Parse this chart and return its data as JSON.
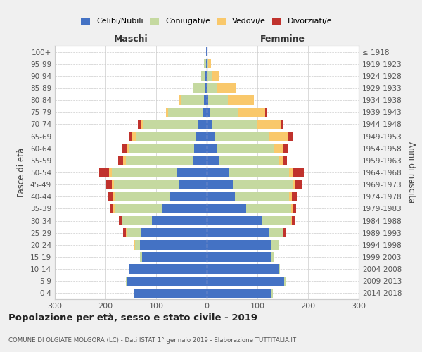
{
  "age_groups": [
    "0-4",
    "5-9",
    "10-14",
    "15-19",
    "20-24",
    "25-29",
    "30-34",
    "35-39",
    "40-44",
    "45-49",
    "50-54",
    "55-59",
    "60-64",
    "65-69",
    "70-74",
    "75-79",
    "80-84",
    "85-89",
    "90-94",
    "95-99",
    "100+"
  ],
  "birth_years": [
    "2014-2018",
    "2009-2013",
    "2004-2008",
    "1999-2003",
    "1994-1998",
    "1989-1993",
    "1984-1988",
    "1979-1983",
    "1974-1978",
    "1969-1973",
    "1964-1968",
    "1959-1963",
    "1954-1958",
    "1949-1953",
    "1944-1948",
    "1939-1943",
    "1934-1938",
    "1929-1933",
    "1924-1928",
    "1919-1923",
    "≤ 1918"
  ],
  "males_celibi": [
    143,
    158,
    153,
    128,
    132,
    130,
    108,
    88,
    72,
    55,
    60,
    28,
    25,
    22,
    18,
    8,
    5,
    4,
    3,
    2,
    1
  ],
  "males_coniugati": [
    2,
    2,
    0,
    4,
    10,
    28,
    58,
    92,
    108,
    128,
    128,
    132,
    128,
    118,
    108,
    68,
    45,
    22,
    8,
    4,
    1
  ],
  "males_vedovi": [
    0,
    0,
    0,
    0,
    1,
    2,
    2,
    5,
    5,
    5,
    5,
    5,
    5,
    8,
    5,
    5,
    5,
    0,
    0,
    0,
    0
  ],
  "males_divorziati": [
    0,
    0,
    0,
    0,
    0,
    5,
    5,
    5,
    10,
    10,
    20,
    10,
    10,
    5,
    5,
    0,
    0,
    0,
    0,
    0,
    0
  ],
  "females_nubili": [
    128,
    153,
    143,
    128,
    128,
    122,
    108,
    78,
    55,
    52,
    45,
    25,
    20,
    15,
    10,
    5,
    3,
    2,
    2,
    1,
    0
  ],
  "females_coniugate": [
    2,
    2,
    2,
    4,
    14,
    28,
    58,
    88,
    108,
    118,
    118,
    118,
    112,
    108,
    88,
    58,
    38,
    18,
    8,
    2,
    1
  ],
  "females_vedove": [
    0,
    0,
    0,
    0,
    1,
    2,
    2,
    5,
    5,
    5,
    8,
    8,
    18,
    38,
    48,
    52,
    52,
    38,
    15,
    5,
    0
  ],
  "females_divorziate": [
    0,
    0,
    0,
    0,
    0,
    5,
    5,
    5,
    10,
    12,
    20,
    8,
    10,
    8,
    5,
    5,
    0,
    0,
    0,
    0,
    0
  ],
  "color_celibi": "#4472C4",
  "color_coniugati": "#c5d9a0",
  "color_vedovi": "#f9c86b",
  "color_divorziati": "#c0322d",
  "xlim": 300,
  "title": "Popolazione per età, sesso e stato civile - 2019",
  "subtitle": "COMUNE DI OLGIATE MOLGORA (LC) - Dati ISTAT 1° gennaio 2019 - Elaborazione TUTTITALIA.IT",
  "ylabel_left": "Fasce di età",
  "ylabel_right": "Anni di nascita",
  "label_maschi": "Maschi",
  "label_femmine": "Femmine",
  "bg_color": "#f0f0f0",
  "plot_bg": "#ffffff",
  "legend_labels": [
    "Celibi/Nubili",
    "Coniugati/e",
    "Vedovi/e",
    "Divorziati/e"
  ]
}
